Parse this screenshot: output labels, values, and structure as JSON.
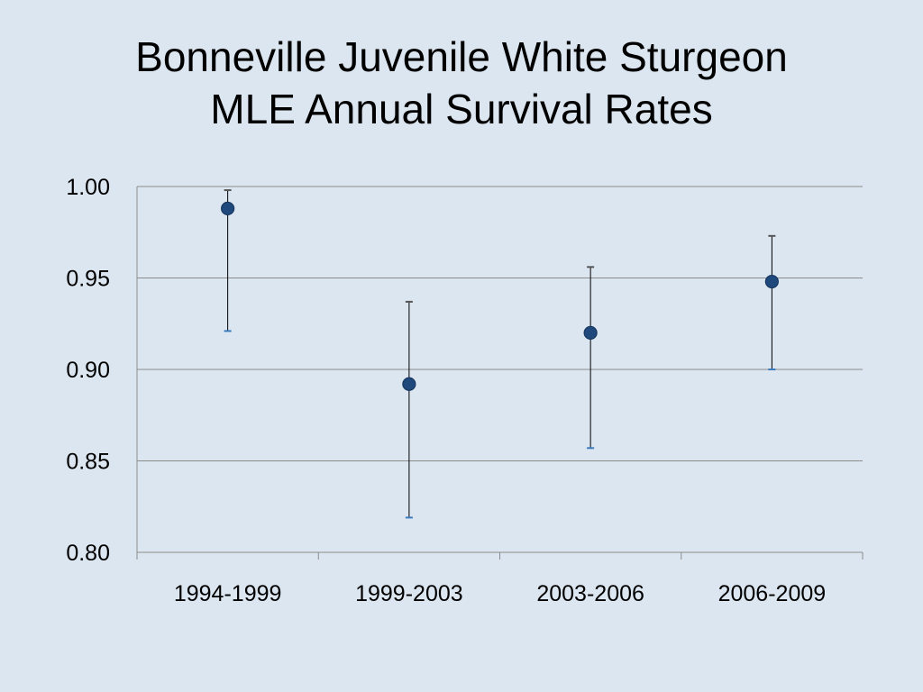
{
  "slide": {
    "title_line1": "Bonneville Juvenile White Sturgeon",
    "title_line2": "MLE Annual Survival Rates"
  },
  "chart_data": {
    "type": "scatter",
    "title": "Bonneville Juvenile White Sturgeon MLE Annual Survival Rates",
    "xlabel": "",
    "ylabel": "",
    "categories": [
      "1994-1999",
      "1999-2003",
      "2003-2006",
      "2006-2009"
    ],
    "values": [
      0.988,
      0.892,
      0.92,
      0.948
    ],
    "error_upper": [
      0.998,
      0.937,
      0.956,
      0.973
    ],
    "error_lower": [
      0.921,
      0.819,
      0.857,
      0.9
    ],
    "ylim": [
      0.8,
      1.0
    ],
    "yticks": [
      "0.80",
      "0.85",
      "0.90",
      "0.95",
      "1.00"
    ],
    "grid": true,
    "legend": "none",
    "colors": {
      "marker": "#1f497d",
      "marker_edge": "#17375e",
      "error_bar": "#000000",
      "grid": "#8c8c8c",
      "background": "#dce6f1"
    }
  }
}
